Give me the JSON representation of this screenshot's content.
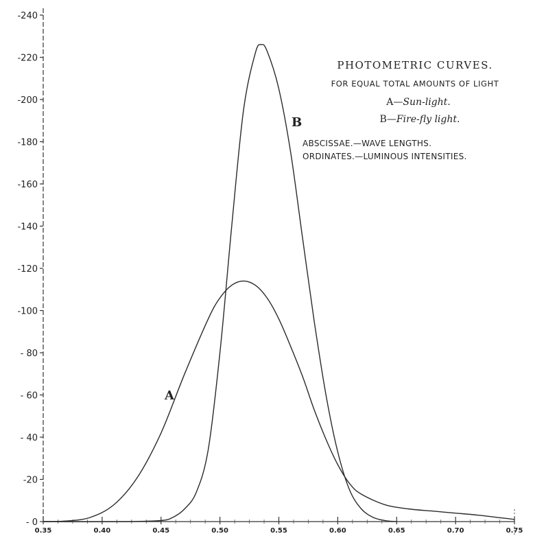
{
  "chart_data": {
    "type": "line",
    "title": "PHOTOMETRIC CURVES.",
    "subtitle": "FOR EQUAL TOTAL AMOUNTS OF LIGHT",
    "legend": [
      {
        "key": "A—",
        "text": "Sun-light."
      },
      {
        "key": "B—",
        "text": "Fire-fly light."
      }
    ],
    "axis_notes": [
      "ABSCISSAE.—WAVE LENGTHS.",
      "ORDINATES.—LUMINOUS INTENSITIES."
    ],
    "xlim": [
      0.35,
      0.75
    ],
    "ylim": [
      0,
      240
    ],
    "x_ticks": [
      {
        "value": 0.35,
        "label": "0.35"
      },
      {
        "value": 0.4,
        "label": "0.40"
      },
      {
        "value": 0.45,
        "label": "0.45"
      },
      {
        "value": 0.5,
        "label": "0.50"
      },
      {
        "value": 0.55,
        "label": "0.55"
      },
      {
        "value": 0.6,
        "label": "0.60"
      },
      {
        "value": 0.65,
        "label": "0.65"
      },
      {
        "value": 0.7,
        "label": "0.70"
      },
      {
        "value": 0.75,
        "label": "0.75"
      }
    ],
    "y_ticks": [
      {
        "value": 0,
        "label": "- 0"
      },
      {
        "value": 20,
        "label": "-20"
      },
      {
        "value": 40,
        "label": "- 40"
      },
      {
        "value": 60,
        "label": "- 60"
      },
      {
        "value": 80,
        "label": "- 80"
      },
      {
        "value": 100,
        "label": "-100"
      },
      {
        "value": 120,
        "label": "-120"
      },
      {
        "value": 140,
        "label": "-140"
      },
      {
        "value": 160,
        "label": "-160"
      },
      {
        "value": 180,
        "label": "-180"
      },
      {
        "value": 200,
        "label": "-200"
      },
      {
        "value": 220,
        "label": "-220"
      },
      {
        "value": 240,
        "label": "-240"
      }
    ],
    "series": [
      {
        "name": "A",
        "x": [
          0.35,
          0.37,
          0.39,
          0.41,
          0.43,
          0.45,
          0.47,
          0.49,
          0.5,
          0.51,
          0.52,
          0.53,
          0.54,
          0.55,
          0.56,
          0.57,
          0.58,
          0.59,
          0.6,
          0.61,
          0.62,
          0.64,
          0.66,
          0.68,
          0.7,
          0.72,
          0.75
        ],
        "y": [
          0,
          0.3,
          2,
          8,
          21,
          42,
          70,
          96,
          106,
          112,
          114,
          112,
          106,
          96,
          83,
          69,
          53,
          39,
          27,
          18,
          13,
          8,
          6,
          5,
          4,
          3,
          1
        ]
      },
      {
        "name": "B",
        "x": [
          0.35,
          0.42,
          0.45,
          0.46,
          0.47,
          0.48,
          0.49,
          0.5,
          0.51,
          0.52,
          0.53,
          0.535,
          0.54,
          0.55,
          0.56,
          0.57,
          0.58,
          0.59,
          0.6,
          0.61,
          0.62,
          0.63,
          0.64,
          0.65
        ],
        "y": [
          0,
          0,
          0.5,
          2,
          6,
          14,
          34,
          80,
          140,
          195,
          222,
          226,
          223,
          205,
          175,
          135,
          95,
          60,
          33,
          15,
          6,
          2,
          0.5,
          0
        ]
      }
    ]
  }
}
